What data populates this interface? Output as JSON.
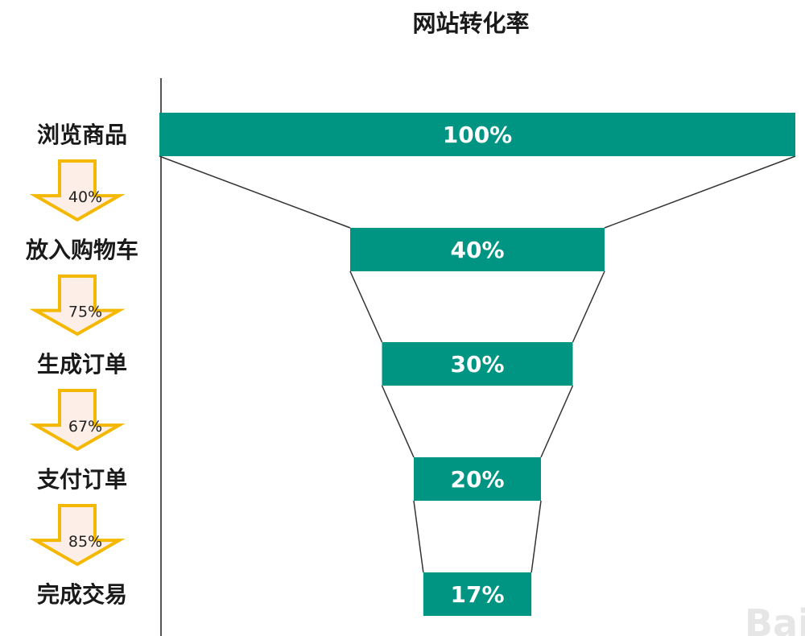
{
  "chart_data": {
    "type": "funnel",
    "title": "网站转化率",
    "stages": [
      "浏览商品",
      "放入购物车",
      "生成订单",
      "支付订单",
      "完成交易"
    ],
    "values": [
      100,
      40,
      30,
      20,
      17
    ],
    "value_labels": [
      "100%",
      "40%",
      "30%",
      "20%",
      "17%"
    ],
    "step_rates": [
      "40%",
      "75%",
      "67%",
      "85%"
    ],
    "bar_color": "#009482",
    "arrow_color": "#fdeee8",
    "arrow_border": "#f5b800",
    "watermark": "Bai"
  }
}
